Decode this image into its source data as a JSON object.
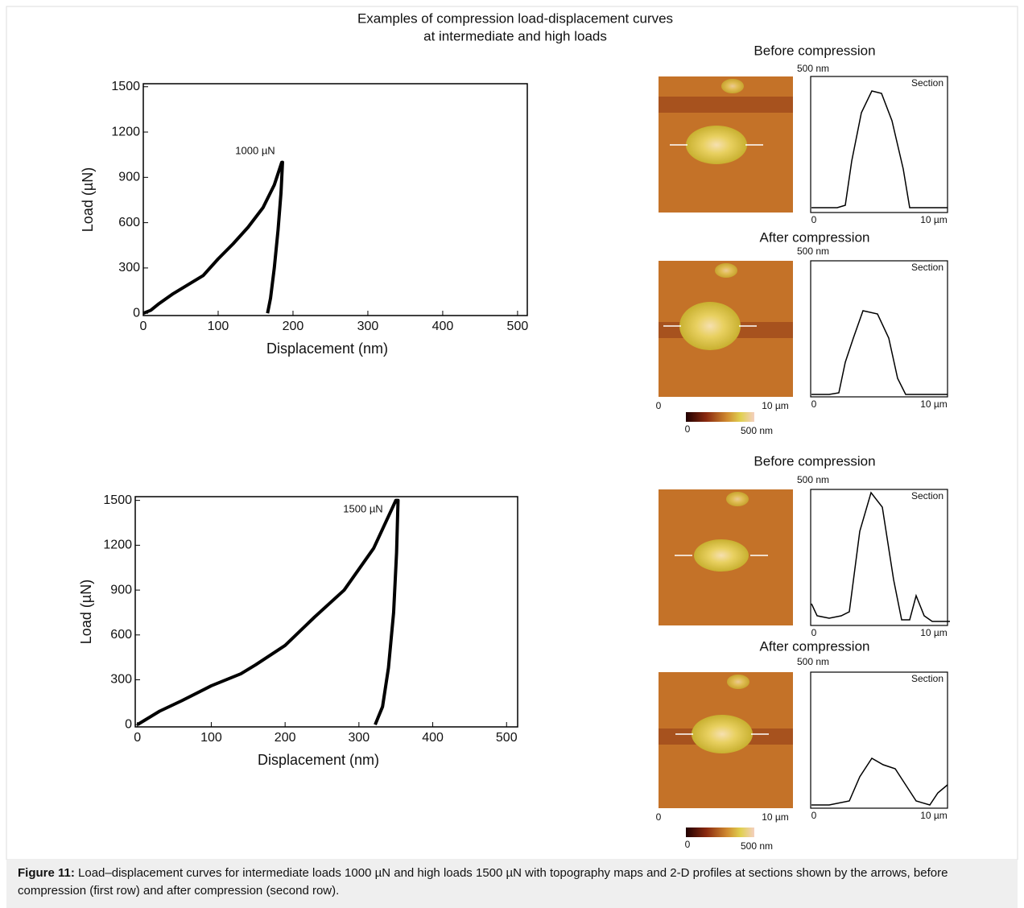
{
  "title": [
    "Examples of compression load-displacement curves",
    "at intermediate and high loads"
  ],
  "chart_data": [
    {
      "type": "line",
      "annotation": "1000 µN",
      "x_label": "Displacement (nm)",
      "y_label": "Load (µN)",
      "color": "#000000",
      "x": [
        0,
        10,
        20,
        40,
        60,
        80,
        100,
        120,
        140,
        160,
        175,
        185,
        186,
        184,
        180,
        175,
        170,
        166
      ],
      "values": [
        0,
        20,
        60,
        130,
        190,
        250,
        360,
        460,
        570,
        700,
        850,
        1000,
        1000,
        800,
        550,
        300,
        100,
        0
      ],
      "xlim": [
        0,
        513
      ],
      "ylim": [
        -15,
        1520
      ],
      "xticks": [
        0,
        100,
        200,
        300,
        400,
        500
      ],
      "yticks": [
        0,
        300,
        600,
        900,
        1200,
        1500
      ]
    },
    {
      "type": "line",
      "annotation": "1500 µN",
      "x_label": "Displacement (nm)",
      "y_label": "Load (µN)",
      "color": "#000000",
      "x": [
        0,
        10,
        30,
        60,
        100,
        140,
        160,
        200,
        240,
        280,
        320,
        350,
        353,
        351,
        347,
        340,
        332,
        322
      ],
      "values": [
        0,
        30,
        90,
        160,
        260,
        340,
        400,
        530,
        720,
        900,
        1180,
        1500,
        1500,
        1150,
        750,
        380,
        120,
        0
      ],
      "xlim": [
        -3,
        515
      ],
      "ylim": [
        -15,
        1525
      ],
      "xticks": [
        0,
        100,
        200,
        300,
        400,
        500
      ],
      "yticks": [
        0,
        300,
        600,
        900,
        1200,
        1500
      ]
    }
  ],
  "afm": [
    {
      "rows": [
        {
          "heading": "Before compression",
          "scale": "500 nm",
          "section": "Section",
          "profile_axis": [
            "0",
            "10 µm"
          ]
        },
        {
          "heading": "After compression",
          "scale": "500 nm",
          "section": "Section",
          "image_axis": [
            "0",
            "10 µm"
          ],
          "profile_axis": [
            "0",
            "10 µm"
          ]
        }
      ],
      "colorbar": [
        "0",
        "500 nm"
      ]
    },
    {
      "rows": [
        {
          "heading": "Before compression",
          "scale": "500 nm",
          "section": "Section",
          "profile_axis": [
            "0",
            "10 µm"
          ]
        },
        {
          "heading": "After compression",
          "scale": "500 nm",
          "section": "Section",
          "image_axis": [
            "0",
            "10 µm"
          ],
          "profile_axis": [
            "0",
            "10 µm"
          ]
        }
      ],
      "colorbar": [
        "0",
        "500 nm"
      ]
    }
  ],
  "caption": {
    "label": "Figure 11:",
    "text": " Load–displacement curves for intermediate loads 1000 µN and high loads 1500 µN with topography maps and 2-D profiles at sections shown by the arrows, before compression (first row) and after compression (second row)."
  }
}
